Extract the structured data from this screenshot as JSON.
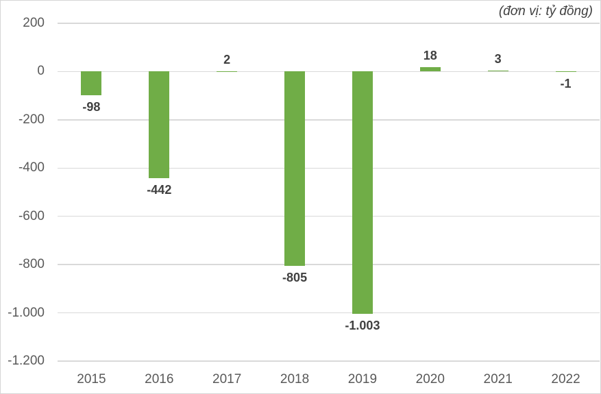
{
  "chart_data": {
    "type": "bar",
    "title": "",
    "unit_note": "(đơn vị: tỷ đồng)",
    "categories": [
      "2015",
      "2016",
      "2017",
      "2018",
      "2019",
      "2020",
      "2021",
      "2022"
    ],
    "values": [
      -98,
      -442,
      2,
      -805,
      -1003,
      18,
      3,
      -1
    ],
    "data_labels": [
      "-98",
      "-442",
      "2",
      "-805",
      "-1.003",
      "18",
      "3",
      "-1"
    ],
    "y_ticks": [
      {
        "label": "200",
        "value": 200
      },
      {
        "label": "0",
        "value": 0
      },
      {
        "label": "-200",
        "value": -200
      },
      {
        "label": "-400",
        "value": -400
      },
      {
        "label": "-600",
        "value": -600
      },
      {
        "label": "-800",
        "value": -800
      },
      {
        "label": "-1.000",
        "value": -1000
      },
      {
        "label": "-1.200",
        "value": -1200
      }
    ],
    "ylim": [
      -1200,
      200
    ],
    "xlabel": "",
    "ylabel": "",
    "grid": true,
    "legend": "none",
    "colors": {
      "bar": "#70AD47",
      "gridline": "#d9d9d9",
      "axis_text": "#595959",
      "data_label_text": "#404040",
      "unit_note_text": "#404040",
      "background": "#ffffff",
      "frame_border": "#d6d6d6"
    }
  }
}
